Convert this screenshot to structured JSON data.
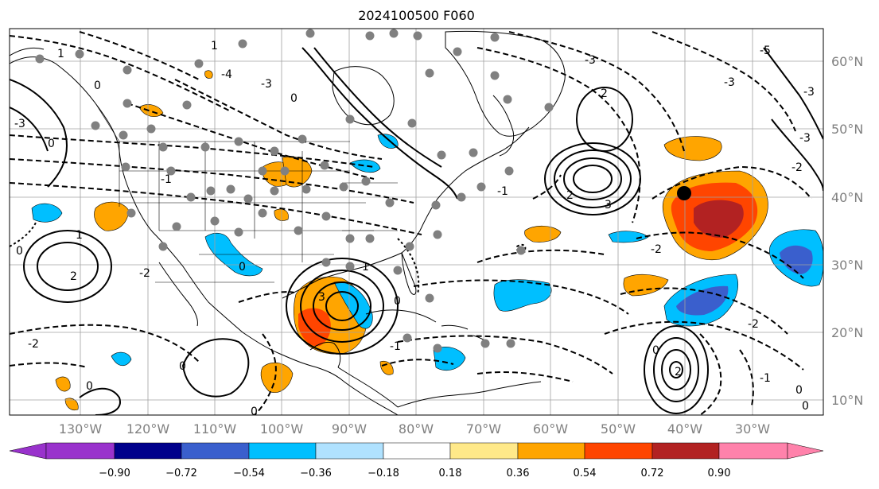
{
  "title": "2024100500 F060",
  "map": {
    "lon_labels": [
      "130°W",
      "120°W",
      "110°W",
      "100°W",
      "90°W",
      "80°W",
      "70°W",
      "60°W",
      "50°W",
      "40°W",
      "30°W"
    ],
    "lat_labels": [
      "60°N",
      "50°N",
      "40°N",
      "30°N",
      "20°N",
      "10°N"
    ],
    "contour_labels": [
      "0",
      "2",
      "3",
      "1",
      "-1",
      "-2",
      "-3",
      "-4",
      "-5",
      "2",
      "1",
      "0",
      "-1",
      "-2",
      "-3",
      "-4",
      "2",
      "-1",
      "-1",
      "0",
      "-1",
      "0",
      "-2",
      "0",
      "-2",
      "0",
      "1",
      "-1",
      "1",
      "2"
    ]
  },
  "colorbar": {
    "ticks": [
      "−0.90",
      "−0.72",
      "−0.54",
      "−0.36",
      "−0.18",
      "0.18",
      "0.36",
      "0.54",
      "0.72",
      "0.90"
    ],
    "colors": [
      "#9932cc",
      "#00008b",
      "#3a5fcd",
      "#00bfff",
      "#b0e2ff",
      "#ffffff",
      "#ffe989",
      "#ffa500",
      "#ff4500",
      "#b22222",
      "#ff82ab"
    ]
  }
}
